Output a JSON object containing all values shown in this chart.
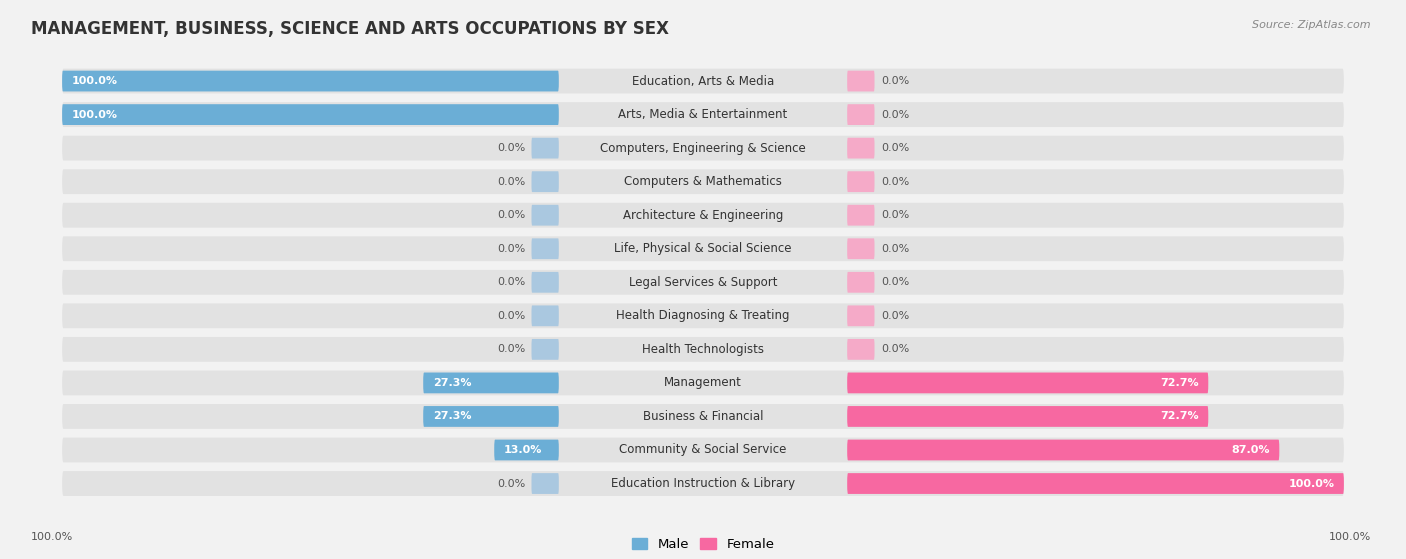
{
  "title": "MANAGEMENT, BUSINESS, SCIENCE AND ARTS OCCUPATIONS BY SEX",
  "source": "Source: ZipAtlas.com",
  "categories": [
    "Education, Arts & Media",
    "Arts, Media & Entertainment",
    "Computers, Engineering & Science",
    "Computers & Mathematics",
    "Architecture & Engineering",
    "Life, Physical & Social Science",
    "Legal Services & Support",
    "Health Diagnosing & Treating",
    "Health Technologists",
    "Management",
    "Business & Financial",
    "Community & Social Service",
    "Education Instruction & Library"
  ],
  "male_values": [
    100.0,
    100.0,
    0.0,
    0.0,
    0.0,
    0.0,
    0.0,
    0.0,
    0.0,
    27.3,
    27.3,
    13.0,
    0.0
  ],
  "female_values": [
    0.0,
    0.0,
    0.0,
    0.0,
    0.0,
    0.0,
    0.0,
    0.0,
    0.0,
    72.7,
    72.7,
    87.0,
    100.0
  ],
  "male_color": "#6baed6",
  "female_color": "#f768a1",
  "male_color_light": "#aac8e0",
  "female_color_light": "#f5aac8",
  "bg_color": "#f2f2f2",
  "row_bg_color": "#e2e2e2",
  "title_fontsize": 12,
  "label_fontsize": 8.5,
  "value_fontsize": 8,
  "legend_fontsize": 9.5
}
